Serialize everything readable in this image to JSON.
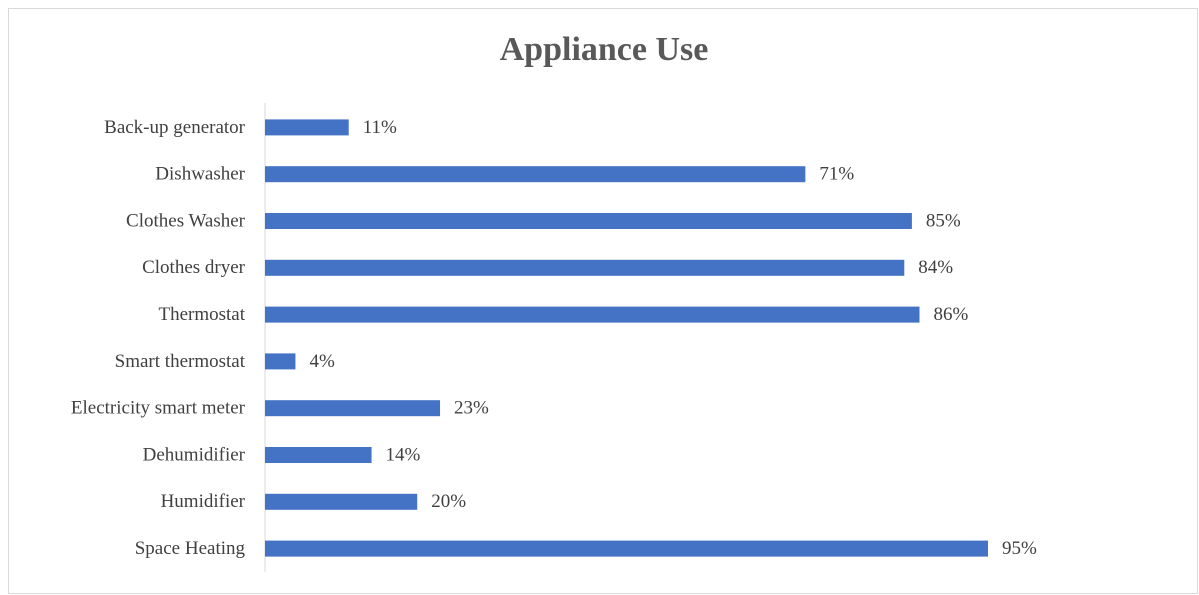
{
  "chart_data": {
    "type": "barh",
    "title": "Appliance Use",
    "categories": [
      "Back-up generator",
      "Dishwasher",
      "Clothes Washer",
      "Clothes dryer",
      "Thermostat",
      "Smart thermostat",
      "Electricity smart meter",
      "Dehumidifier",
      "Humidifier",
      "Space Heating"
    ],
    "values": [
      11,
      71,
      85,
      84,
      86,
      4,
      23,
      14,
      20,
      95
    ],
    "value_labels": [
      "11%",
      "71%",
      "85%",
      "84%",
      "86%",
      "4%",
      "23%",
      "14%",
      "20%",
      "95%"
    ],
    "color": "#4472c4"
  }
}
